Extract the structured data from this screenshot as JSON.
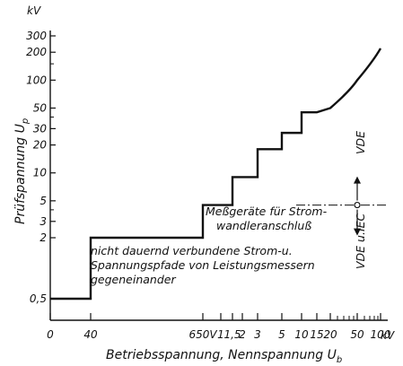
{
  "chart_data": {
    "type": "line",
    "title": "",
    "xlabel": "Betriebsspannung, Nennspannung U",
    "xlabel_sub": "b",
    "ylabel": "Prüfspannung U",
    "ylabel_sub": "p",
    "y_unit": "kV",
    "x_unit": "kV",
    "y_scale": "log",
    "ylim": [
      0.3,
      300
    ],
    "grid": false,
    "y_ticks": [
      "0,5",
      "2",
      "3",
      "5",
      "10",
      "20",
      "30",
      "50",
      "100",
      "200",
      "300"
    ],
    "x_ticks": [
      "0",
      "40",
      "650V",
      "1",
      "1,5",
      "2",
      "3",
      "5",
      "10",
      "15",
      "20",
      "50",
      "100"
    ],
    "series": [
      {
        "points": [
          {
            "x": "0",
            "y": 0.5
          },
          {
            "x": "40",
            "y": 0.5
          },
          {
            "x": "40",
            "y": 2
          },
          {
            "x": "650V",
            "y": 2
          },
          {
            "x": "650V",
            "y": 4.5
          },
          {
            "x": "1,5",
            "y": 4.5
          },
          {
            "x": "1,5",
            "y": 9
          },
          {
            "x": "3",
            "y": 9
          },
          {
            "x": "3",
            "y": 18
          },
          {
            "x": "5",
            "y": 18
          },
          {
            "x": "5",
            "y": 27
          },
          {
            "x": "10",
            "y": 27
          },
          {
            "x": "10",
            "y": 45
          },
          {
            "x": "15",
            "y": 45
          },
          {
            "x": "20",
            "y": 50
          },
          {
            "x": "50",
            "y": 100
          },
          {
            "x": "100",
            "y": 220
          }
        ]
      }
    ],
    "reference_line": {
      "y": 4.5,
      "label_above": "VDE",
      "label_below": "VDE u.IEC"
    },
    "annotations": [
      {
        "lines": [
          "Meßgeräte für Strom-",
          "wandleranschluß"
        ]
      },
      {
        "lines": [
          "nicht dauernd verbundene Strom-u.",
          "Spannungspfade von Leistungsmessern",
          "gegeneinander"
        ]
      }
    ]
  }
}
